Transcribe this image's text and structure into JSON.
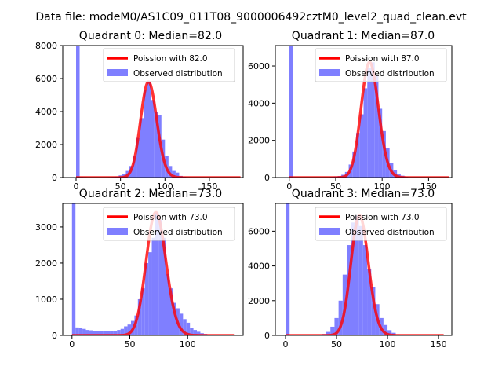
{
  "figure_title": "Data file: modeM0/AS1C09_011T08_9000006492cztM0_level2_quad_clean.evt",
  "colors": {
    "observed": "#7f7fff",
    "poisson": "#ff0000",
    "poisson_overlap": "#ff7f7f"
  },
  "chart_data": [
    {
      "type": "bar",
      "title": "Quadrant 0: Median=82.0",
      "xlim": [
        -15,
        188
      ],
      "ylim": [
        0,
        8000
      ],
      "xticks": [
        0,
        50,
        100,
        150
      ],
      "yticks": [
        0,
        2000,
        4000,
        6000,
        8000
      ],
      "legend": [
        "Poission with 82.0",
        "Observed distribution"
      ],
      "legend_loc": "upper right",
      "median": 82,
      "poisson_x_max": 185,
      "bin_width": 4,
      "bins": [
        {
          "x": 0,
          "y": 8000
        },
        {
          "x": 4,
          "y": 40
        },
        {
          "x": 8,
          "y": 30
        },
        {
          "x": 12,
          "y": 20
        },
        {
          "x": 16,
          "y": 20
        },
        {
          "x": 20,
          "y": 20
        },
        {
          "x": 24,
          "y": 20
        },
        {
          "x": 28,
          "y": 20
        },
        {
          "x": 32,
          "y": 20
        },
        {
          "x": 36,
          "y": 30
        },
        {
          "x": 40,
          "y": 40
        },
        {
          "x": 44,
          "y": 60
        },
        {
          "x": 48,
          "y": 130
        },
        {
          "x": 52,
          "y": 200
        },
        {
          "x": 56,
          "y": 400
        },
        {
          "x": 60,
          "y": 700
        },
        {
          "x": 64,
          "y": 1300
        },
        {
          "x": 68,
          "y": 2400
        },
        {
          "x": 72,
          "y": 3600
        },
        {
          "x": 76,
          "y": 5300
        },
        {
          "x": 80,
          "y": 5800
        },
        {
          "x": 84,
          "y": 4700
        },
        {
          "x": 88,
          "y": 4000
        },
        {
          "x": 92,
          "y": 3800
        },
        {
          "x": 96,
          "y": 2300
        },
        {
          "x": 100,
          "y": 1300
        },
        {
          "x": 104,
          "y": 700
        },
        {
          "x": 108,
          "y": 400
        },
        {
          "x": 112,
          "y": 300
        },
        {
          "x": 116,
          "y": 100
        },
        {
          "x": 120,
          "y": 50
        },
        {
          "x": 124,
          "y": 30
        }
      ]
    },
    {
      "type": "bar",
      "title": "Quadrant 1: Median=87.0",
      "xlim": [
        -15,
        175
      ],
      "ylim": [
        0,
        7100
      ],
      "xticks": [
        0,
        50,
        100,
        150
      ],
      "yticks": [
        0,
        2000,
        4000,
        6000
      ],
      "legend": [
        "Poission with 87.0",
        "Observed distribution"
      ],
      "legend_loc": "upper right",
      "median": 87,
      "poisson_x_max": 172,
      "bin_width": 4,
      "bins": [
        {
          "x": 0,
          "y": 7100
        },
        {
          "x": 4,
          "y": 20
        },
        {
          "x": 8,
          "y": 20
        },
        {
          "x": 12,
          "y": 20
        },
        {
          "x": 16,
          "y": 20
        },
        {
          "x": 20,
          "y": 20
        },
        {
          "x": 24,
          "y": 20
        },
        {
          "x": 28,
          "y": 20
        },
        {
          "x": 32,
          "y": 20
        },
        {
          "x": 36,
          "y": 20
        },
        {
          "x": 40,
          "y": 20
        },
        {
          "x": 44,
          "y": 40
        },
        {
          "x": 48,
          "y": 60
        },
        {
          "x": 52,
          "y": 80
        },
        {
          "x": 56,
          "y": 150
        },
        {
          "x": 60,
          "y": 300
        },
        {
          "x": 64,
          "y": 700
        },
        {
          "x": 68,
          "y": 1400
        },
        {
          "x": 72,
          "y": 2400
        },
        {
          "x": 76,
          "y": 3400
        },
        {
          "x": 80,
          "y": 4800
        },
        {
          "x": 84,
          "y": 5900
        },
        {
          "x": 88,
          "y": 6200
        },
        {
          "x": 92,
          "y": 5500
        },
        {
          "x": 96,
          "y": 3700
        },
        {
          "x": 100,
          "y": 2500
        },
        {
          "x": 104,
          "y": 1600
        },
        {
          "x": 108,
          "y": 800
        },
        {
          "x": 112,
          "y": 400
        },
        {
          "x": 116,
          "y": 200
        },
        {
          "x": 120,
          "y": 100
        },
        {
          "x": 124,
          "y": 40
        },
        {
          "x": 128,
          "y": 20
        }
      ]
    },
    {
      "type": "bar",
      "title": "Quadrant 2: Median=73.0",
      "xlim": [
        -8,
        148
      ],
      "ylim": [
        0,
        3650
      ],
      "xticks": [
        0,
        50,
        100
      ],
      "yticks": [
        0,
        1000,
        2000,
        3000
      ],
      "legend": [
        "Poission with 73.0",
        "Observed distribution"
      ],
      "legend_loc": "upper right",
      "median": 73,
      "poisson_x_max": 140,
      "bin_width": 3,
      "bins": [
        {
          "x": 0,
          "y": 3650
        },
        {
          "x": 3,
          "y": 220
        },
        {
          "x": 6,
          "y": 200
        },
        {
          "x": 9,
          "y": 180
        },
        {
          "x": 12,
          "y": 150
        },
        {
          "x": 15,
          "y": 140
        },
        {
          "x": 18,
          "y": 130
        },
        {
          "x": 21,
          "y": 120
        },
        {
          "x": 24,
          "y": 120
        },
        {
          "x": 27,
          "y": 120
        },
        {
          "x": 30,
          "y": 110
        },
        {
          "x": 33,
          "y": 120
        },
        {
          "x": 36,
          "y": 130
        },
        {
          "x": 39,
          "y": 150
        },
        {
          "x": 42,
          "y": 180
        },
        {
          "x": 45,
          "y": 250
        },
        {
          "x": 48,
          "y": 300
        },
        {
          "x": 51,
          "y": 400
        },
        {
          "x": 54,
          "y": 550
        },
        {
          "x": 57,
          "y": 1000
        },
        {
          "x": 60,
          "y": 1300
        },
        {
          "x": 63,
          "y": 2000
        },
        {
          "x": 66,
          "y": 2300
        },
        {
          "x": 69,
          "y": 2700
        },
        {
          "x": 72,
          "y": 3400
        },
        {
          "x": 75,
          "y": 3200
        },
        {
          "x": 78,
          "y": 2700
        },
        {
          "x": 81,
          "y": 1700
        },
        {
          "x": 84,
          "y": 1300
        },
        {
          "x": 87,
          "y": 900
        },
        {
          "x": 90,
          "y": 750
        },
        {
          "x": 93,
          "y": 600
        },
        {
          "x": 96,
          "y": 450
        },
        {
          "x": 99,
          "y": 350
        },
        {
          "x": 102,
          "y": 200
        },
        {
          "x": 105,
          "y": 150
        },
        {
          "x": 108,
          "y": 100
        },
        {
          "x": 111,
          "y": 60
        },
        {
          "x": 114,
          "y": 40
        },
        {
          "x": 117,
          "y": 20
        }
      ]
    },
    {
      "type": "bar",
      "title": "Quadrant 3: Median=73.0",
      "xlim": [
        -10,
        163
      ],
      "ylim": [
        0,
        7600
      ],
      "xticks": [
        0,
        50,
        100,
        150
      ],
      "yticks": [
        0,
        2000,
        4000,
        6000
      ],
      "legend": [
        "Poission with 73.0",
        "Observed distribution"
      ],
      "legend_loc": "upper right",
      "median": 73,
      "poisson_x_max": 155,
      "bin_width": 4,
      "bins": [
        {
          "x": 0,
          "y": 7600
        },
        {
          "x": 4,
          "y": 20
        },
        {
          "x": 8,
          "y": 20
        },
        {
          "x": 12,
          "y": 20
        },
        {
          "x": 16,
          "y": 20
        },
        {
          "x": 20,
          "y": 20
        },
        {
          "x": 24,
          "y": 20
        },
        {
          "x": 28,
          "y": 20
        },
        {
          "x": 32,
          "y": 40
        },
        {
          "x": 36,
          "y": 80
        },
        {
          "x": 40,
          "y": 200
        },
        {
          "x": 44,
          "y": 500
        },
        {
          "x": 48,
          "y": 1000
        },
        {
          "x": 52,
          "y": 2000
        },
        {
          "x": 56,
          "y": 3500
        },
        {
          "x": 60,
          "y": 5200
        },
        {
          "x": 64,
          "y": 6500
        },
        {
          "x": 68,
          "y": 6900
        },
        {
          "x": 72,
          "y": 6300
        },
        {
          "x": 76,
          "y": 5200
        },
        {
          "x": 80,
          "y": 3800
        },
        {
          "x": 84,
          "y": 2800
        },
        {
          "x": 88,
          "y": 1800
        },
        {
          "x": 92,
          "y": 1000
        },
        {
          "x": 96,
          "y": 600
        },
        {
          "x": 100,
          "y": 300
        },
        {
          "x": 104,
          "y": 150
        },
        {
          "x": 108,
          "y": 60
        },
        {
          "x": 112,
          "y": 20
        }
      ]
    }
  ]
}
